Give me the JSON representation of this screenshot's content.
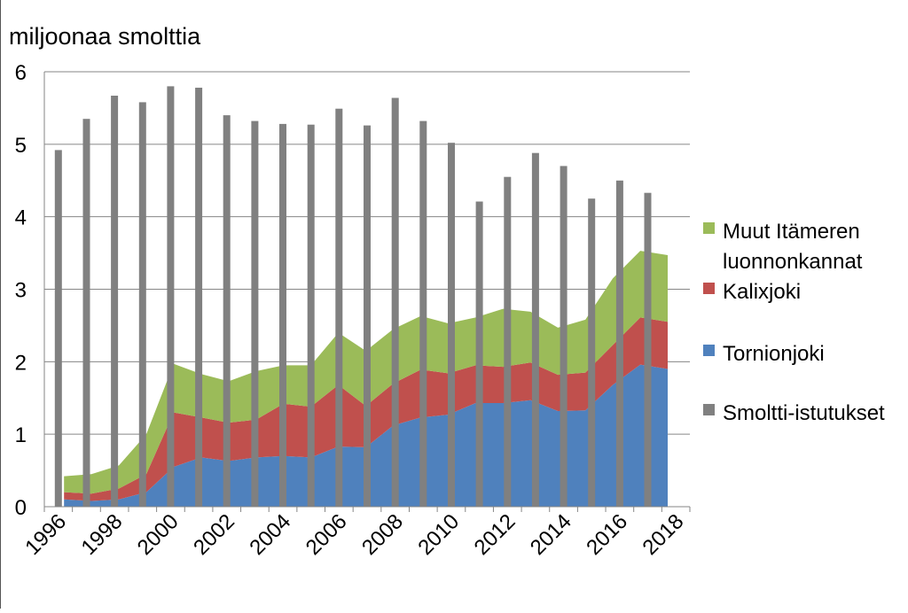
{
  "chart_data": {
    "type": "area",
    "ylabel": "miljoonaa smolttia",
    "xlabel": "",
    "ylim": [
      0,
      6
    ],
    "yticks": [
      0,
      1,
      2,
      3,
      4,
      5,
      6
    ],
    "grid": true,
    "legend_position": "right",
    "x": [
      1996,
      1997,
      1998,
      1999,
      2000,
      2001,
      2002,
      2003,
      2004,
      2005,
      2006,
      2007,
      2008,
      2009,
      2010,
      2011,
      2012,
      2013,
      2014,
      2015,
      2016,
      2017,
      2018
    ],
    "xtick_labels": [
      "1996",
      "1998",
      "2000",
      "2002",
      "2004",
      "2006",
      "2008",
      "2010",
      "2012",
      "2014",
      "2016",
      "2018"
    ],
    "stacked_areas": [
      {
        "name": "Tornionjoki",
        "color": "#4f81bd",
        "values": [
          0.1,
          0.08,
          0.1,
          0.2,
          0.55,
          0.68,
          0.63,
          0.68,
          0.7,
          0.68,
          0.83,
          0.82,
          1.12,
          1.23,
          1.27,
          1.43,
          1.43,
          1.47,
          1.32,
          1.33,
          1.68,
          1.96,
          1.9
        ]
      },
      {
        "name": "Kalixjoki",
        "color": "#c0504d",
        "values": [
          0.1,
          0.1,
          0.15,
          0.25,
          0.75,
          0.55,
          0.53,
          0.52,
          0.72,
          0.7,
          0.85,
          0.57,
          0.58,
          0.66,
          0.57,
          0.52,
          0.5,
          0.52,
          0.5,
          0.52,
          0.55,
          0.65,
          0.65
        ]
      },
      {
        "name": "Muut Itämeren luonnonkannat",
        "color": "#9bbb59",
        "values": [
          0.22,
          0.27,
          0.32,
          0.55,
          0.67,
          0.6,
          0.57,
          0.67,
          0.53,
          0.57,
          0.72,
          0.76,
          0.75,
          0.74,
          0.69,
          0.66,
          0.8,
          0.7,
          0.65,
          0.73,
          0.92,
          0.92,
          0.92
        ]
      }
    ],
    "bars": {
      "name": "Smoltti-istutukset",
      "color": "#808080",
      "values": [
        4.92,
        5.35,
        5.67,
        5.58,
        5.8,
        5.78,
        5.4,
        5.32,
        5.28,
        5.27,
        5.49,
        5.26,
        5.64,
        5.32,
        5.02,
        4.21,
        4.55,
        4.88,
        4.7,
        4.25,
        4.5,
        4.33,
        0
      ]
    },
    "legend": [
      {
        "lines": [
          "Muut Itämeren",
          "luonnonkannat"
        ],
        "color": "#9bbb59"
      },
      {
        "lines": [
          "Kalixjoki"
        ],
        "color": "#c0504d"
      },
      {
        "lines": [
          "Tornionjoki"
        ],
        "color": "#4f81bd"
      },
      {
        "lines": [
          "Smoltti-istutukset"
        ],
        "color": "#808080"
      }
    ]
  }
}
